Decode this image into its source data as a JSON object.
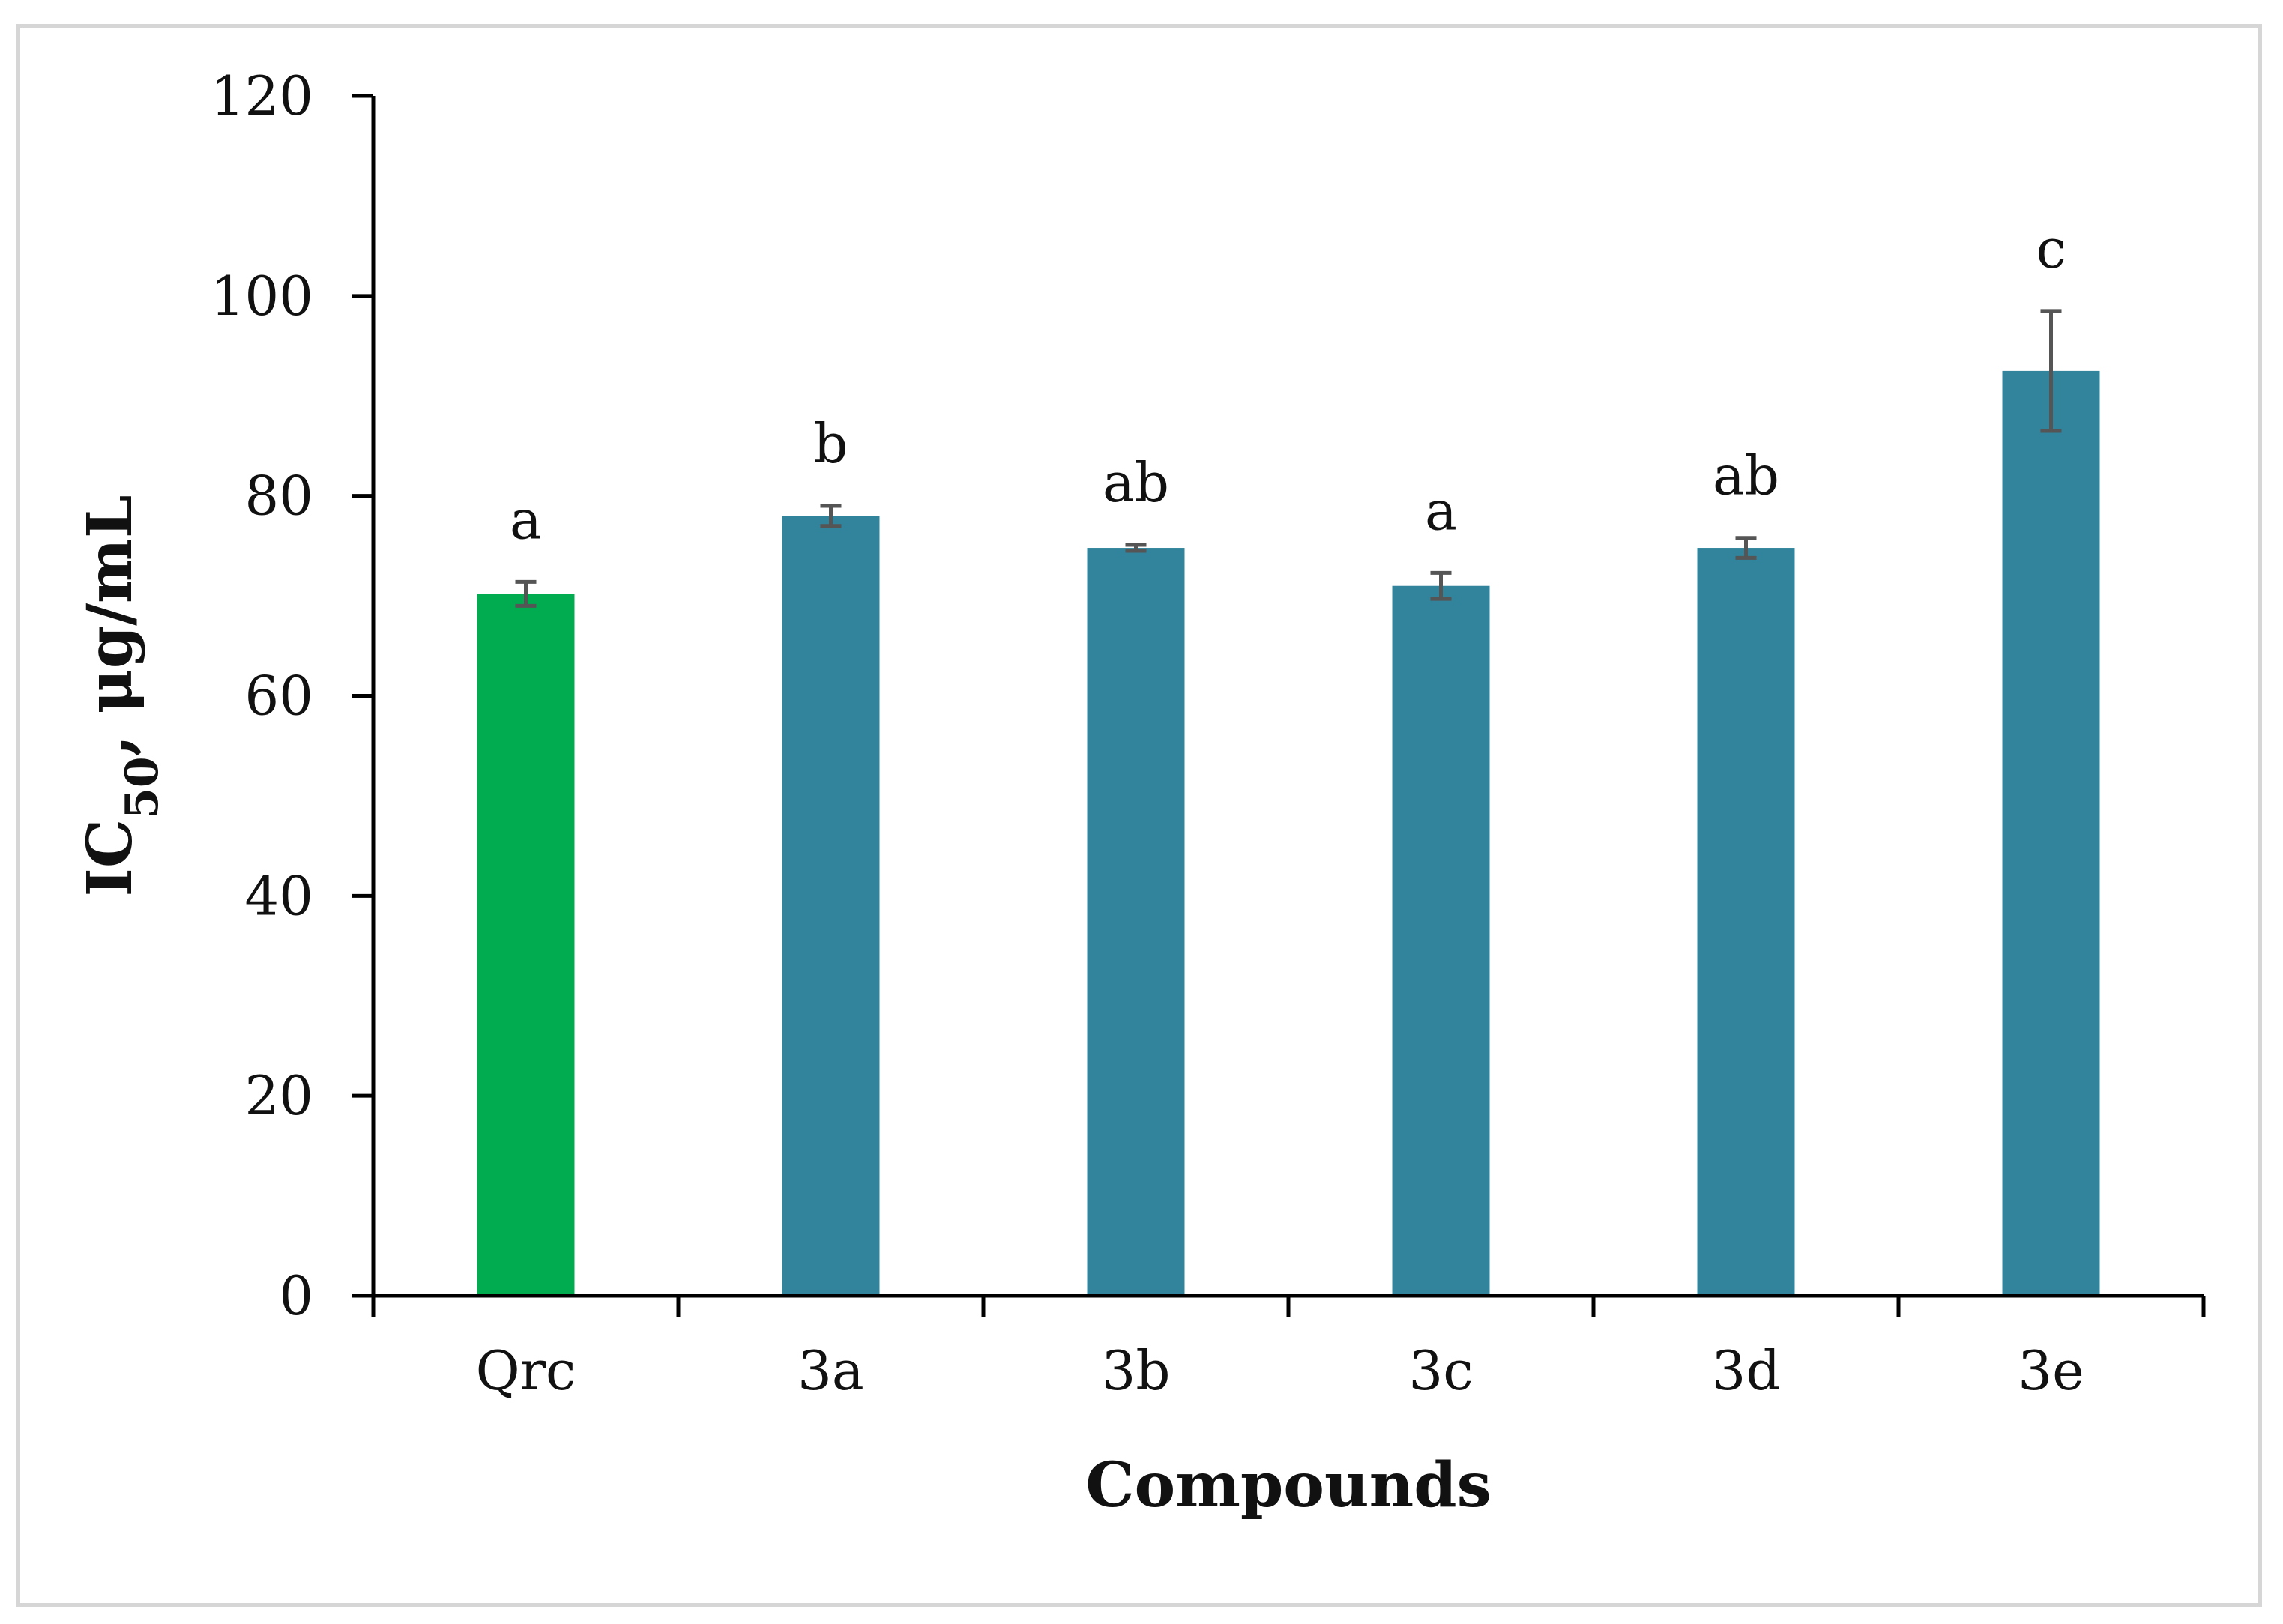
{
  "chart_data": {
    "type": "bar",
    "categories": [
      "Qrc",
      "3a",
      "3b",
      "3c",
      "3d",
      "3e"
    ],
    "values": [
      70.2,
      78.0,
      74.8,
      71.0,
      74.8,
      92.5
    ],
    "errors": [
      1.2,
      1.0,
      0.3,
      1.3,
      1.0,
      6.0
    ],
    "significance_letters": [
      "a",
      "b",
      "ab",
      "a",
      "ab",
      "c"
    ],
    "bar_colors": [
      "#00ac4f",
      "#31849b",
      "#31849b",
      "#31849b",
      "#31849b",
      "#31849b"
    ],
    "error_bar_color": "#555555",
    "title": "",
    "xlabel": "Compounds",
    "ylabel": {
      "main": "IC",
      "subscript": "50",
      "rest": ", μg/mL"
    },
    "ylim": [
      0,
      120
    ],
    "yticks": [
      "0",
      "20",
      "40",
      "60",
      "80",
      "100",
      "120"
    ],
    "grid": false,
    "legend": "none"
  }
}
